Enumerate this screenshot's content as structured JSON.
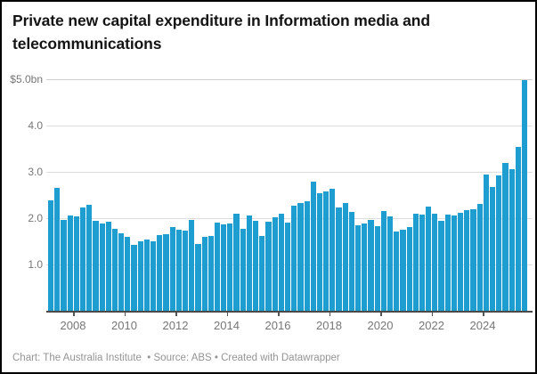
{
  "title": "Private new capital expenditure in Information media and telecommunications",
  "footer": "Chart: The Australia Institute  • Source: ABS • Created with Datawrapper",
  "colors": {
    "bar": "#1d9dd0",
    "gridline": "#dedede",
    "axis_text": "#767676",
    "baseline": "#4a4a4a",
    "title_text": "#141414",
    "footer_text": "#949494"
  },
  "y_axis": {
    "tick_labels": [
      "$5.0bn",
      "4.0",
      "3.0",
      "2.0",
      "1.0"
    ],
    "tick_values": [
      5,
      4,
      3,
      2,
      1
    ],
    "min": 0,
    "max": 5
  },
  "x_axis": {
    "tick_labels": [
      "2008",
      "2010",
      "2012",
      "2014",
      "2016",
      "2018",
      "2020",
      "2022",
      "2024"
    ]
  },
  "chart_data": {
    "type": "bar",
    "title": "Private new capital expenditure in Information media and telecommunications",
    "ylabel": "$bn",
    "xlabel": "",
    "ylim": [
      0,
      5
    ],
    "grid": true,
    "legend": false,
    "unit": "A$ billion",
    "frequency": "quarterly",
    "x": [
      "2007 Q1",
      "2007 Q2",
      "2007 Q3",
      "2007 Q4",
      "2008 Q1",
      "2008 Q2",
      "2008 Q3",
      "2008 Q4",
      "2009 Q1",
      "2009 Q2",
      "2009 Q3",
      "2009 Q4",
      "2010 Q1",
      "2010 Q2",
      "2010 Q3",
      "2010 Q4",
      "2011 Q1",
      "2011 Q2",
      "2011 Q3",
      "2011 Q4",
      "2012 Q1",
      "2012 Q2",
      "2012 Q3",
      "2012 Q4",
      "2013 Q1",
      "2013 Q2",
      "2013 Q3",
      "2013 Q4",
      "2014 Q1",
      "2014 Q2",
      "2014 Q3",
      "2014 Q4",
      "2015 Q1",
      "2015 Q2",
      "2015 Q3",
      "2015 Q4",
      "2016 Q1",
      "2016 Q2",
      "2016 Q3",
      "2016 Q4",
      "2017 Q1",
      "2017 Q2",
      "2017 Q3",
      "2017 Q4",
      "2018 Q1",
      "2018 Q2",
      "2018 Q3",
      "2018 Q4",
      "2019 Q1",
      "2019 Q2",
      "2019 Q3",
      "2019 Q4",
      "2020 Q1",
      "2020 Q2",
      "2020 Q3",
      "2020 Q4",
      "2021 Q1",
      "2021 Q2",
      "2021 Q3",
      "2021 Q4",
      "2022 Q1",
      "2022 Q2",
      "2022 Q3",
      "2022 Q4",
      "2023 Q1",
      "2023 Q2",
      "2023 Q3",
      "2023 Q4",
      "2024 Q1",
      "2024 Q2",
      "2024 Q3",
      "2024 Q4",
      "2025 Q1",
      "2025 Q2",
      "2025 Q3"
    ],
    "values": [
      2.38,
      2.65,
      1.96,
      2.06,
      2.04,
      2.24,
      2.28,
      1.94,
      1.88,
      1.92,
      1.77,
      1.67,
      1.6,
      1.42,
      1.51,
      1.53,
      1.51,
      1.63,
      1.65,
      1.81,
      1.76,
      1.74,
      1.97,
      1.45,
      1.6,
      1.61,
      1.9,
      1.87,
      1.88,
      2.09,
      1.77,
      2.05,
      1.94,
      1.62,
      1.92,
      2.02,
      2.1,
      1.91,
      2.27,
      2.33,
      2.36,
      2.78,
      2.54,
      2.57,
      2.63,
      2.23,
      2.33,
      2.14,
      1.85,
      1.88,
      1.97,
      1.82,
      2.15,
      2.04,
      1.72,
      1.76,
      1.8,
      2.1,
      2.08,
      2.25,
      2.1,
      1.94,
      2.08,
      2.05,
      2.12,
      2.18,
      2.2,
      2.31,
      2.95,
      2.67,
      2.92,
      3.19,
      3.06,
      3.53,
      4.98
    ]
  }
}
